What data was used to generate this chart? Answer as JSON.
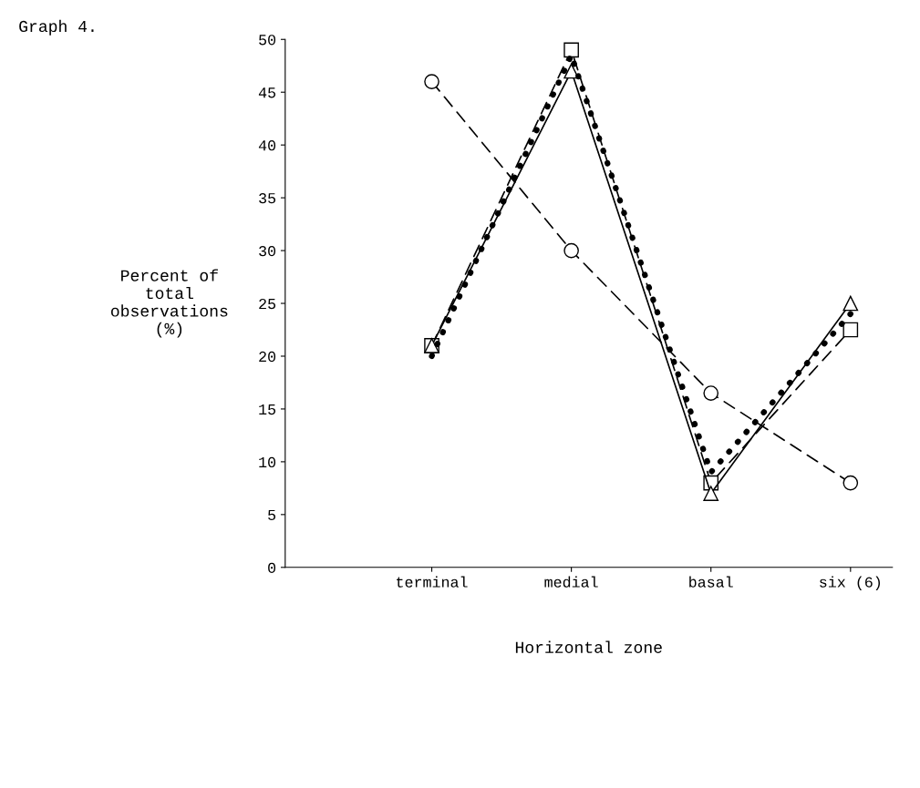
{
  "chart_data": {
    "type": "line",
    "title": "Graph 4.",
    "xlabel": "Horizontal zone",
    "ylabel": "Percent of\ntotal\nobservations\n(%)",
    "categories": [
      "terminal",
      "medial",
      "basal",
      "six (6)"
    ],
    "series": [
      {
        "color": "#000000",
        "values": [
          46,
          30,
          16.5,
          8
        ],
        "marker": "circle",
        "line_style": "dashed"
      },
      {
        "color": "#000000",
        "values": [
          21,
          49,
          8,
          22.5
        ],
        "marker": "square",
        "line_style": "dashed"
      },
      {
        "color": "#000000",
        "values": [
          21,
          47,
          7,
          25
        ],
        "marker": "triangle",
        "line_style": "solid"
      },
      {
        "color": "#000000",
        "values": [
          20,
          48.5,
          9,
          24
        ],
        "marker": "none",
        "line_style": "dotted"
      }
    ],
    "ylim": [
      0,
      50
    ],
    "yticks": [
      0,
      5,
      10,
      15,
      20,
      25,
      30,
      35,
      40,
      45,
      50
    ]
  }
}
